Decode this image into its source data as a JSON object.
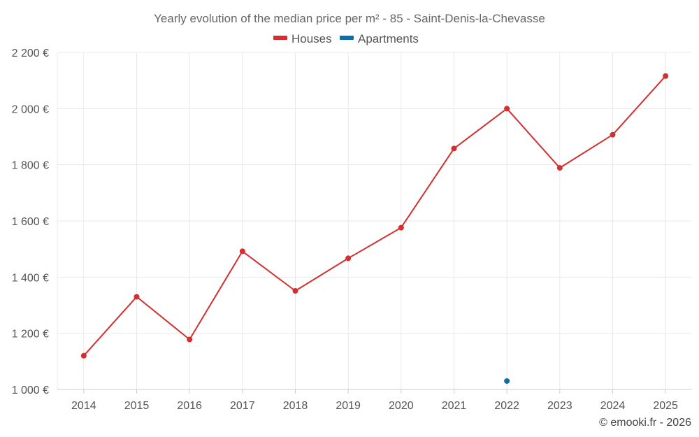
{
  "chart_data": {
    "type": "line",
    "title": "Yearly evolution of the median price per m² - 85 - Saint-Denis-la-Chevasse",
    "categories": [
      "2014",
      "2015",
      "2016",
      "2017",
      "2018",
      "2019",
      "2020",
      "2021",
      "2022",
      "2023",
      "2024",
      "2025"
    ],
    "ylim": [
      1000,
      2200
    ],
    "yticks": [
      1000,
      1200,
      1400,
      1600,
      1800,
      2000,
      2200
    ],
    "ytick_labels": [
      "1 000 €",
      "1 200 €",
      "1 400 €",
      "1 600 €",
      "1 800 €",
      "2 000 €",
      "2 200 €"
    ],
    "grid": true,
    "legend_position": "top-center",
    "series": [
      {
        "name": "Houses",
        "color": "#d32f2f",
        "values": [
          1120,
          1330,
          1178,
          1492,
          1351,
          1467,
          1576,
          1858,
          2000,
          1789,
          1907,
          2116
        ]
      },
      {
        "name": "Apartments",
        "color": "#0d6ea8",
        "values": [
          null,
          null,
          null,
          null,
          null,
          null,
          null,
          null,
          1030,
          null,
          null,
          null
        ]
      }
    ],
    "credit": "© emooki.fr - 2026"
  }
}
